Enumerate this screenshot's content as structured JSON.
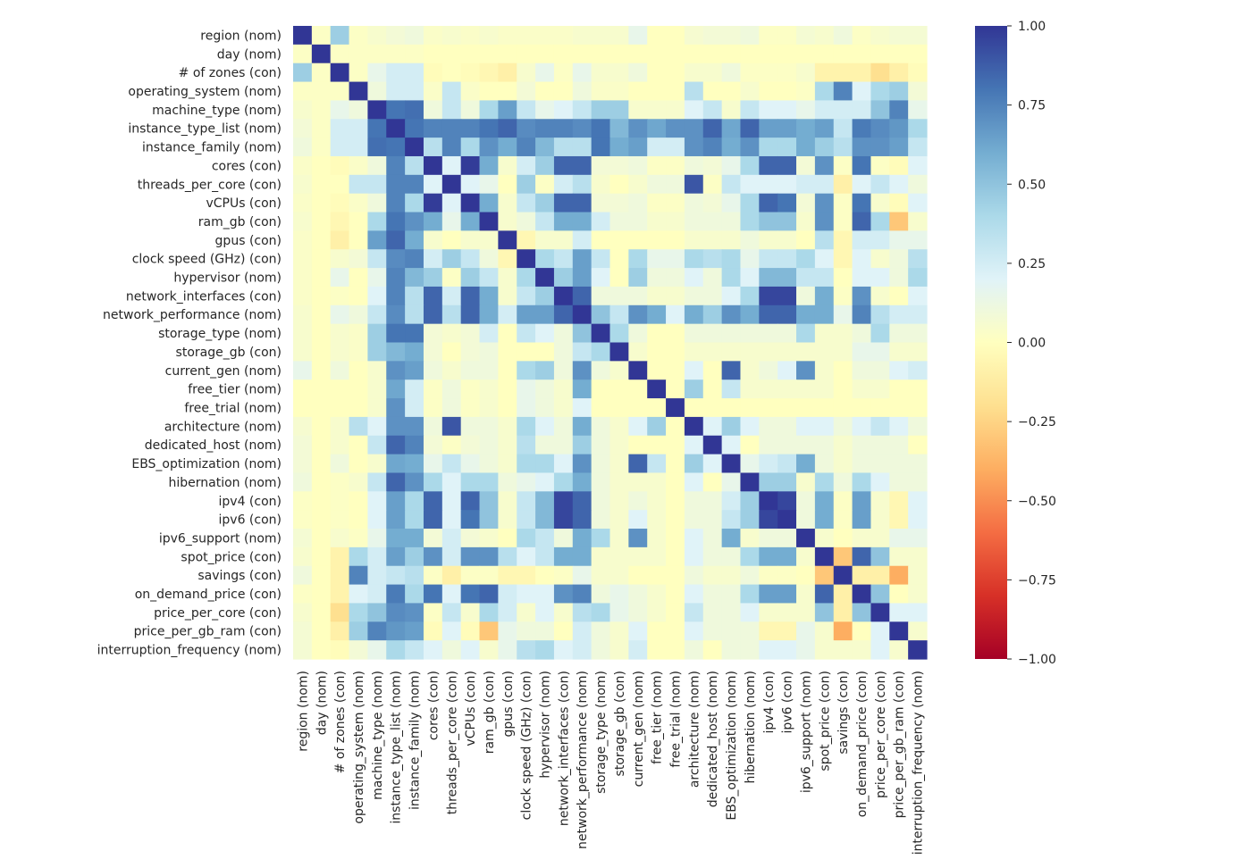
{
  "chart_data": {
    "type": "heatmap",
    "title": "",
    "xlabel": "",
    "ylabel": "",
    "labels": [
      "region (nom)",
      "day (nom)",
      "# of zones (con)",
      "operating_system (nom)",
      "machine_type (nom)",
      "instance_type_list (nom)",
      "instance_family (nom)",
      "cores (con)",
      "threads_per_core (con)",
      "vCPUs (con)",
      "ram_gb (con)",
      "gpus (con)",
      "clock speed (GHz) (con)",
      "hypervisor (nom)",
      "network_interfaces (con)",
      "network_performance (nom)",
      "storage_type (nom)",
      "storage_gb (con)",
      "current_gen (nom)",
      "free_tier (nom)",
      "free_trial (nom)",
      "architecture (nom)",
      "dedicated_host (nom)",
      "EBS_optimization (nom)",
      "hibernation (nom)",
      "ipv4 (con)",
      "ipv6 (con)",
      "ipv6_support (nom)",
      "spot_price (con)",
      "savings (con)",
      "on_demand_price (con)",
      "price_per_core (con)",
      "price_per_gb_ram (con)",
      "interruption_frequency (nom)"
    ],
    "values": [
      [
        1.0,
        0.02,
        0.45,
        0.02,
        0.05,
        0.08,
        0.1,
        0.03,
        0.05,
        0.03,
        0.05,
        0.03,
        0.03,
        0.03,
        0.03,
        0.05,
        0.05,
        0.05,
        0.15,
        0.0,
        0.0,
        0.06,
        0.08,
        0.08,
        0.1,
        0.02,
        0.02,
        0.07,
        0.05,
        0.1,
        0.02,
        0.05,
        0.07,
        0.07
      ],
      [
        0.02,
        1.0,
        0.02,
        0.02,
        0.02,
        0.02,
        0.02,
        0.0,
        0.0,
        0.0,
        0.0,
        0.0,
        0.0,
        0.0,
        0.0,
        0.0,
        0.0,
        0.0,
        0.0,
        0.0,
        0.0,
        0.0,
        0.0,
        0.0,
        0.0,
        0.0,
        0.0,
        0.0,
        0.0,
        0.0,
        0.0,
        0.0,
        0.0,
        0.0
      ],
      [
        0.45,
        0.02,
        1.0,
        0.02,
        0.15,
        0.25,
        0.25,
        -0.02,
        0.0,
        -0.02,
        -0.05,
        -0.1,
        0.05,
        0.15,
        0.02,
        0.15,
        0.05,
        0.05,
        0.1,
        0.0,
        0.0,
        0.05,
        0.05,
        0.1,
        0.02,
        0.02,
        0.02,
        0.05,
        -0.08,
        -0.08,
        -0.08,
        -0.2,
        -0.1,
        -0.02
      ],
      [
        0.02,
        0.02,
        0.02,
        1.0,
        0.1,
        0.25,
        0.25,
        0.03,
        0.3,
        0.03,
        0.0,
        0.0,
        0.08,
        0.0,
        0.0,
        0.1,
        0.03,
        0.03,
        0.0,
        0.0,
        0.0,
        0.35,
        0.0,
        0.0,
        0.05,
        0.0,
        0.0,
        0.02,
        0.4,
        0.75,
        0.2,
        0.4,
        0.45,
        0.08
      ],
      [
        0.05,
        0.02,
        0.15,
        0.1,
        1.0,
        0.8,
        0.82,
        0.1,
        0.3,
        0.1,
        0.4,
        0.65,
        0.3,
        0.15,
        0.2,
        0.3,
        0.45,
        0.45,
        0.05,
        0.05,
        0.05,
        0.2,
        0.3,
        0.05,
        0.3,
        0.2,
        0.2,
        0.15,
        0.25,
        0.25,
        0.25,
        0.5,
        0.75,
        0.15
      ],
      [
        0.08,
        0.02,
        0.25,
        0.25,
        0.8,
        1.0,
        0.8,
        0.75,
        0.75,
        0.75,
        0.8,
        0.85,
        0.72,
        0.75,
        0.75,
        0.72,
        0.8,
        0.55,
        0.7,
        0.62,
        0.7,
        0.7,
        0.85,
        0.62,
        0.85,
        0.65,
        0.65,
        0.6,
        0.65,
        0.3,
        0.78,
        0.72,
        0.68,
        0.4
      ],
      [
        0.1,
        0.02,
        0.25,
        0.25,
        0.82,
        0.8,
        1.0,
        0.35,
        0.75,
        0.4,
        0.7,
        0.6,
        0.75,
        0.55,
        0.35,
        0.35,
        0.8,
        0.6,
        0.65,
        0.25,
        0.25,
        0.7,
        0.75,
        0.6,
        0.7,
        0.4,
        0.4,
        0.6,
        0.45,
        0.35,
        0.7,
        0.7,
        0.65,
        0.3
      ],
      [
        0.03,
        0.0,
        -0.02,
        0.03,
        0.1,
        0.75,
        0.35,
        1.0,
        0.2,
        0.98,
        0.6,
        0.05,
        0.25,
        0.45,
        0.85,
        0.85,
        0.08,
        0.08,
        0.1,
        0.02,
        0.02,
        0.1,
        0.08,
        0.15,
        0.4,
        0.85,
        0.85,
        0.08,
        0.7,
        0.02,
        0.8,
        0.02,
        -0.02,
        0.2
      ],
      [
        0.05,
        0.0,
        0.0,
        0.3,
        0.3,
        0.75,
        0.75,
        0.2,
        1.0,
        0.2,
        0.15,
        0.0,
        0.45,
        0.02,
        0.25,
        0.35,
        0.05,
        0.0,
        0.05,
        0.1,
        0.1,
        0.9,
        0.02,
        0.3,
        0.2,
        0.2,
        0.2,
        0.25,
        0.25,
        -0.1,
        0.2,
        0.3,
        0.2,
        0.1
      ],
      [
        0.03,
        0.0,
        -0.02,
        0.03,
        0.1,
        0.75,
        0.4,
        0.98,
        0.2,
        1.0,
        0.6,
        0.05,
        0.3,
        0.45,
        0.85,
        0.85,
        0.08,
        0.08,
        0.1,
        0.02,
        0.02,
        0.1,
        0.08,
        0.15,
        0.4,
        0.85,
        0.8,
        0.08,
        0.7,
        0.02,
        0.8,
        0.05,
        -0.02,
        0.2
      ],
      [
        0.05,
        0.0,
        -0.05,
        0.0,
        0.4,
        0.8,
        0.7,
        0.6,
        0.15,
        0.6,
        1.0,
        0.05,
        0.1,
        0.3,
        0.6,
        0.6,
        0.25,
        0.1,
        0.1,
        0.05,
        0.05,
        0.1,
        0.1,
        0.1,
        0.4,
        0.5,
        0.5,
        0.05,
        0.7,
        0.02,
        0.85,
        0.4,
        -0.3,
        0.05
      ],
      [
        0.03,
        0.0,
        -0.1,
        0.0,
        0.65,
        0.85,
        0.6,
        0.05,
        0.0,
        0.05,
        0.05,
        1.0,
        -0.05,
        0.05,
        0.05,
        0.25,
        0.0,
        0.0,
        0.0,
        0.0,
        0.0,
        0.05,
        0.05,
        0.05,
        0.1,
        0.05,
        0.05,
        0.0,
        0.35,
        -0.05,
        0.25,
        0.25,
        0.15,
        0.15
      ],
      [
        0.03,
        0.0,
        0.05,
        0.08,
        0.3,
        0.72,
        0.75,
        0.25,
        0.45,
        0.3,
        0.1,
        -0.05,
        1.0,
        0.4,
        0.3,
        0.65,
        0.3,
        0.0,
        0.4,
        0.15,
        0.15,
        0.4,
        0.35,
        0.4,
        0.15,
        0.3,
        0.3,
        0.4,
        0.2,
        -0.05,
        0.2,
        0.05,
        0.1,
        0.35
      ],
      [
        0.03,
        0.0,
        0.15,
        0.0,
        0.15,
        0.75,
        0.55,
        0.45,
        0.02,
        0.45,
        0.3,
        0.05,
        0.4,
        1.0,
        0.45,
        0.65,
        0.2,
        0.0,
        0.45,
        0.1,
        0.1,
        0.2,
        0.1,
        0.4,
        0.2,
        0.55,
        0.55,
        0.3,
        0.3,
        0.0,
        0.2,
        0.2,
        0.1,
        0.4
      ],
      [
        0.03,
        0.0,
        0.02,
        0.0,
        0.2,
        0.75,
        0.35,
        0.85,
        0.25,
        0.85,
        0.6,
        0.05,
        0.3,
        0.45,
        1.0,
        0.85,
        0.1,
        0.1,
        0.1,
        0.05,
        0.05,
        0.1,
        0.1,
        0.2,
        0.4,
        0.95,
        0.95,
        0.1,
        0.6,
        0.02,
        0.7,
        0.05,
        0.0,
        0.2
      ],
      [
        0.05,
        0.0,
        0.15,
        0.1,
        0.3,
        0.72,
        0.35,
        0.85,
        0.35,
        0.85,
        0.6,
        0.25,
        0.65,
        0.65,
        0.85,
        1.0,
        0.5,
        0.3,
        0.7,
        0.6,
        0.2,
        0.6,
        0.45,
        0.7,
        0.6,
        0.85,
        0.85,
        0.6,
        0.6,
        0.15,
        0.75,
        0.35,
        0.25,
        0.25
      ],
      [
        0.05,
        0.0,
        0.05,
        0.03,
        0.45,
        0.8,
        0.8,
        0.08,
        0.05,
        0.08,
        0.25,
        0.0,
        0.3,
        0.2,
        0.1,
        0.5,
        1.0,
        0.4,
        0.1,
        0.0,
        0.0,
        0.1,
        0.1,
        0.1,
        0.1,
        0.1,
        0.1,
        0.4,
        0.05,
        0.05,
        0.1,
        0.4,
        0.1,
        0.1
      ],
      [
        0.05,
        0.0,
        0.05,
        0.03,
        0.45,
        0.55,
        0.6,
        0.08,
        0.0,
        0.08,
        0.1,
        0.0,
        0.0,
        0.0,
        0.1,
        0.3,
        0.4,
        1.0,
        0.05,
        0.0,
        0.0,
        0.05,
        0.05,
        0.05,
        0.05,
        0.05,
        0.05,
        0.05,
        0.05,
        0.05,
        0.15,
        0.15,
        0.05,
        0.05
      ],
      [
        0.15,
        0.0,
        0.1,
        0.0,
        0.05,
        0.7,
        0.65,
        0.1,
        0.05,
        0.1,
        0.1,
        0.0,
        0.4,
        0.45,
        0.1,
        0.7,
        0.1,
        0.05,
        1.0,
        0.0,
        0.0,
        0.2,
        0.0,
        0.85,
        0.05,
        0.1,
        0.2,
        0.7,
        0.05,
        0.0,
        0.1,
        0.1,
        0.2,
        0.25
      ],
      [
        0.0,
        0.0,
        0.0,
        0.0,
        0.05,
        0.62,
        0.25,
        0.02,
        0.1,
        0.02,
        0.05,
        0.0,
        0.15,
        0.1,
        0.05,
        0.6,
        0.0,
        0.0,
        0.0,
        1.0,
        0.0,
        0.45,
        0.0,
        0.3,
        0.05,
        0.05,
        0.05,
        0.05,
        0.05,
        0.0,
        0.05,
        0.05,
        0.0,
        0.0
      ],
      [
        0.0,
        0.0,
        0.0,
        0.0,
        0.05,
        0.7,
        0.25,
        0.02,
        0.1,
        0.02,
        0.05,
        0.0,
        0.15,
        0.1,
        0.05,
        0.2,
        0.0,
        0.0,
        0.0,
        0.0,
        1.0,
        0.0,
        0.0,
        0.0,
        0.0,
        0.0,
        0.0,
        0.0,
        0.0,
        0.0,
        0.0,
        0.0,
        0.0,
        0.0
      ],
      [
        0.06,
        0.0,
        0.05,
        0.35,
        0.2,
        0.7,
        0.7,
        0.1,
        0.9,
        0.1,
        0.1,
        0.05,
        0.4,
        0.2,
        0.1,
        0.6,
        0.1,
        0.05,
        0.2,
        0.45,
        0.0,
        1.0,
        0.2,
        0.45,
        0.2,
        0.1,
        0.1,
        0.2,
        0.2,
        0.1,
        0.2,
        0.3,
        0.2,
        0.1
      ],
      [
        0.08,
        0.0,
        0.05,
        0.0,
        0.3,
        0.85,
        0.75,
        0.08,
        0.02,
        0.08,
        0.1,
        0.05,
        0.35,
        0.1,
        0.1,
        0.45,
        0.1,
        0.05,
        0.0,
        0.0,
        0.0,
        0.2,
        1.0,
        0.2,
        0.0,
        0.1,
        0.1,
        0.1,
        0.1,
        0.05,
        0.1,
        0.1,
        0.1,
        0.0
      ],
      [
        0.08,
        0.0,
        0.1,
        0.0,
        0.05,
        0.62,
        0.6,
        0.15,
        0.3,
        0.15,
        0.1,
        0.05,
        0.4,
        0.4,
        0.2,
        0.7,
        0.1,
        0.05,
        0.85,
        0.3,
        0.0,
        0.45,
        0.2,
        1.0,
        0.15,
        0.25,
        0.3,
        0.6,
        0.1,
        0.05,
        0.1,
        0.1,
        0.1,
        0.1
      ],
      [
        0.1,
        0.0,
        0.02,
        0.05,
        0.3,
        0.85,
        0.7,
        0.4,
        0.2,
        0.4,
        0.4,
        0.1,
        0.15,
        0.2,
        0.4,
        0.6,
        0.1,
        0.05,
        0.05,
        0.05,
        0.0,
        0.2,
        0.0,
        0.15,
        1.0,
        0.45,
        0.45,
        0.05,
        0.4,
        0.1,
        0.4,
        0.2,
        0.1,
        0.1
      ],
      [
        0.02,
        0.0,
        0.02,
        0.0,
        0.2,
        0.65,
        0.4,
        0.85,
        0.2,
        0.85,
        0.5,
        0.05,
        0.3,
        0.55,
        0.95,
        0.85,
        0.1,
        0.05,
        0.1,
        0.05,
        0.0,
        0.1,
        0.1,
        0.25,
        0.45,
        1.0,
        0.95,
        0.1,
        0.6,
        0.02,
        0.65,
        0.05,
        -0.05,
        0.2
      ],
      [
        0.02,
        0.0,
        0.02,
        0.0,
        0.2,
        0.65,
        0.4,
        0.85,
        0.2,
        0.8,
        0.5,
        0.05,
        0.3,
        0.55,
        0.95,
        0.85,
        0.1,
        0.05,
        0.2,
        0.05,
        0.0,
        0.1,
        0.1,
        0.3,
        0.45,
        0.95,
        1.0,
        0.1,
        0.6,
        0.02,
        0.65,
        0.05,
        -0.05,
        0.2
      ],
      [
        0.07,
        0.0,
        0.05,
        0.02,
        0.15,
        0.6,
        0.6,
        0.08,
        0.25,
        0.08,
        0.05,
        0.0,
        0.4,
        0.3,
        0.1,
        0.6,
        0.4,
        0.05,
        0.7,
        0.05,
        0.0,
        0.2,
        0.1,
        0.6,
        0.05,
        0.1,
        0.1,
        1.0,
        0.05,
        0.0,
        0.05,
        0.05,
        0.15,
        0.15
      ],
      [
        0.05,
        0.0,
        -0.08,
        0.4,
        0.25,
        0.65,
        0.45,
        0.7,
        0.25,
        0.7,
        0.7,
        0.35,
        0.2,
        0.3,
        0.6,
        0.6,
        0.05,
        0.05,
        0.05,
        0.05,
        0.0,
        0.2,
        0.1,
        0.1,
        0.4,
        0.6,
        0.6,
        0.05,
        1.0,
        -0.3,
        0.85,
        0.5,
        0.05,
        0.05
      ],
      [
        0.1,
        0.0,
        -0.08,
        0.75,
        0.25,
        0.3,
        0.35,
        0.02,
        -0.1,
        0.02,
        0.02,
        -0.05,
        -0.05,
        0.0,
        0.02,
        0.15,
        0.05,
        0.05,
        0.0,
        0.0,
        0.0,
        0.1,
        0.05,
        0.05,
        0.1,
        0.02,
        0.02,
        0.0,
        -0.3,
        1.0,
        -0.1,
        -0.1,
        -0.4,
        0.05
      ],
      [
        0.02,
        0.0,
        -0.08,
        0.2,
        0.25,
        0.78,
        0.4,
        0.8,
        0.2,
        0.8,
        0.85,
        0.25,
        0.2,
        0.2,
        0.7,
        0.75,
        0.1,
        0.15,
        0.1,
        0.05,
        0.0,
        0.2,
        0.1,
        0.1,
        0.4,
        0.65,
        0.65,
        0.05,
        0.85,
        -0.1,
        1.0,
        0.5,
        0.0,
        0.05
      ],
      [
        0.05,
        0.0,
        -0.2,
        0.4,
        0.5,
        0.72,
        0.7,
        0.02,
        0.3,
        0.05,
        0.4,
        0.25,
        0.05,
        0.2,
        0.05,
        0.35,
        0.4,
        0.15,
        0.1,
        0.05,
        0.0,
        0.3,
        0.1,
        0.1,
        0.2,
        0.05,
        0.05,
        0.05,
        0.5,
        -0.1,
        0.5,
        1.0,
        0.2,
        0.2
      ],
      [
        0.07,
        0.0,
        -0.1,
        0.45,
        0.75,
        0.68,
        0.65,
        -0.02,
        0.2,
        -0.02,
        -0.3,
        0.15,
        0.1,
        0.1,
        0.0,
        0.25,
        0.1,
        0.05,
        0.2,
        0.0,
        0.0,
        0.2,
        0.1,
        0.1,
        0.1,
        -0.05,
        -0.05,
        0.15,
        0.05,
        -0.4,
        0.0,
        0.2,
        1.0,
        0.05
      ],
      [
        0.07,
        0.0,
        -0.02,
        0.08,
        0.15,
        0.4,
        0.3,
        0.2,
        0.1,
        0.2,
        0.05,
        0.15,
        0.35,
        0.4,
        0.2,
        0.25,
        0.1,
        0.05,
        0.25,
        0.0,
        0.0,
        0.1,
        0.0,
        0.1,
        0.1,
        0.2,
        0.2,
        0.15,
        0.05,
        0.05,
        0.05,
        0.2,
        0.05,
        1.0
      ]
    ],
    "vmin": -1.0,
    "vmax": 1.0,
    "colormap": "RdYlBu",
    "colorbar": {
      "ticks": [
        1.0,
        0.75,
        0.5,
        0.25,
        0.0,
        -0.25,
        -0.5,
        -0.75,
        -1.0
      ],
      "tick_labels": [
        "1.00",
        "0.75",
        "0.50",
        "0.25",
        "0.00",
        "−0.25",
        "−0.50",
        "−0.75",
        "−1.00"
      ]
    }
  }
}
